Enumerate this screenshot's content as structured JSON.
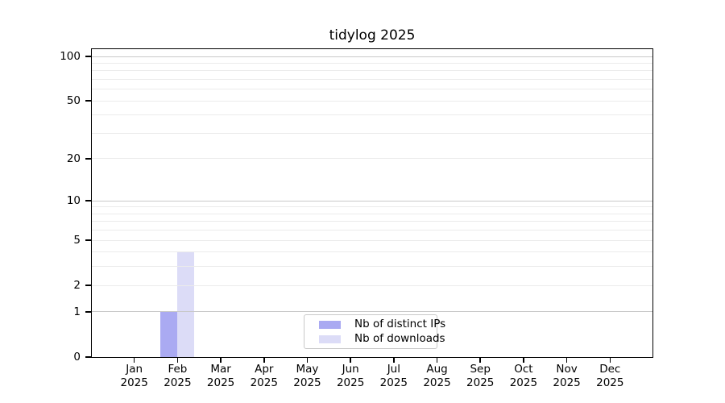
{
  "title": "tidylog 2025",
  "chart_data": {
    "type": "bar",
    "title": "tidylog 2025",
    "categories": [
      "Jan 2025",
      "Feb 2025",
      "Mar 2025",
      "Apr 2025",
      "May 2025",
      "Jun 2025",
      "Jul 2025",
      "Aug 2025",
      "Sep 2025",
      "Oct 2025",
      "Nov 2025",
      "Dec 2025"
    ],
    "series": [
      {
        "name": "Nb of distinct IPs",
        "color": "#aaaaf2",
        "values": [
          0,
          1,
          0,
          0,
          0,
          0,
          0,
          0,
          0,
          0,
          0,
          0
        ]
      },
      {
        "name": "Nb of downloads",
        "color": "#dcdcf7",
        "values": [
          0,
          4,
          0,
          0,
          0,
          0,
          0,
          0,
          0,
          0,
          0,
          0
        ]
      }
    ],
    "xlabel": "",
    "ylabel": "",
    "yscale": "log1p",
    "ylim": [
      0,
      100
    ],
    "yticks": [
      0,
      1,
      2,
      5,
      10,
      20,
      50,
      100
    ],
    "grid": true,
    "grid_major_values": [
      1,
      10,
      100
    ],
    "grid_minor_values": [
      2,
      3,
      4,
      5,
      6,
      7,
      8,
      9,
      20,
      30,
      40,
      50,
      60,
      70,
      80,
      90
    ],
    "legend_position": "inside-bottom-center"
  },
  "colors": {
    "distinct_ips": "#aaaaf2",
    "downloads": "#dcdcf7",
    "grid_major": "#c9c9c9",
    "grid_minor": "#ebebeb",
    "axis": "#000000",
    "legend_border": "#c8c8c8",
    "background": "#ffffff"
  }
}
